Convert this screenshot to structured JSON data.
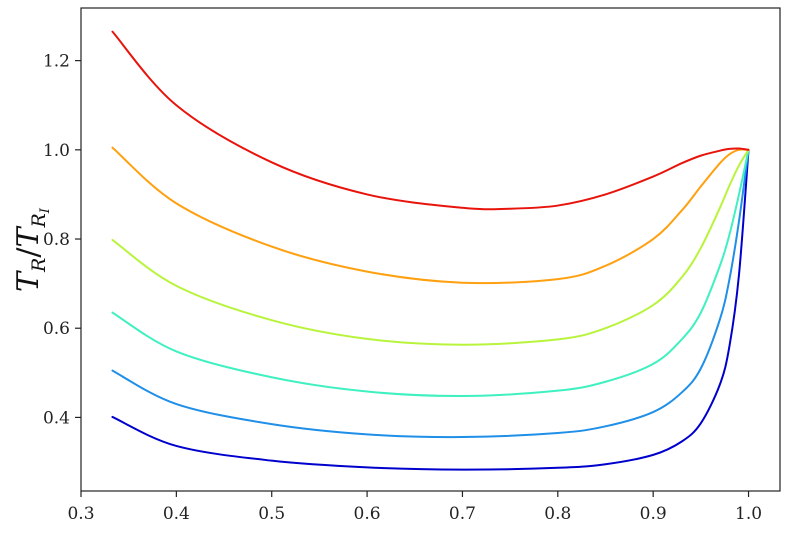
{
  "chart_data": {
    "type": "line",
    "title": "",
    "xlabel": "",
    "ylabel": {
      "main": "T",
      "sub": "R",
      "sep": "/",
      "main2": "T",
      "sub2": "R",
      "subsub2": "I"
    },
    "xlim": [
      0.3,
      1.033
    ],
    "ylim": [
      0.235,
      1.318
    ],
    "xticks": [
      0.3,
      0.4,
      0.5,
      0.6,
      0.7,
      0.8,
      0.9,
      1.0
    ],
    "xtick_labels": [
      "0.3",
      "0.4",
      "0.5",
      "0.6",
      "0.7",
      "0.8",
      "0.9",
      "1.0"
    ],
    "yticks": [
      0.4,
      0.6,
      0.8,
      1.0,
      1.2
    ],
    "ytick_labels": [
      "0.4",
      "0.6",
      "0.8",
      "1.0",
      "1.2"
    ],
    "grid": false,
    "legend": "none",
    "series": [
      {
        "color": "#0000cc",
        "x": [
          0.333,
          0.4,
          0.5,
          0.6,
          0.7,
          0.8,
          0.85,
          0.9,
          0.93,
          0.95,
          0.97,
          0.98,
          0.99,
          1.0
        ],
        "y": [
          0.401,
          0.336,
          0.303,
          0.288,
          0.283,
          0.287,
          0.295,
          0.316,
          0.346,
          0.387,
          0.474,
          0.56,
          0.72,
          1.0
        ]
      },
      {
        "color": "#1f8fe8",
        "x": [
          0.333,
          0.4,
          0.5,
          0.6,
          0.7,
          0.8,
          0.85,
          0.9,
          0.93,
          0.95,
          0.97,
          0.98,
          0.99,
          1.0
        ],
        "y": [
          0.505,
          0.43,
          0.385,
          0.362,
          0.356,
          0.365,
          0.38,
          0.412,
          0.456,
          0.51,
          0.62,
          0.71,
          0.84,
          1.0
        ]
      },
      {
        "color": "#3ff0c0",
        "x": [
          0.333,
          0.4,
          0.5,
          0.6,
          0.7,
          0.8,
          0.85,
          0.9,
          0.93,
          0.95,
          0.97,
          0.98,
          0.99,
          1.0
        ],
        "y": [
          0.635,
          0.548,
          0.49,
          0.458,
          0.448,
          0.46,
          0.48,
          0.52,
          0.575,
          0.635,
          0.74,
          0.81,
          0.9,
          1.0
        ]
      },
      {
        "color": "#b8f43c",
        "x": [
          0.333,
          0.4,
          0.5,
          0.6,
          0.7,
          0.8,
          0.85,
          0.9,
          0.93,
          0.95,
          0.97,
          0.98,
          0.99,
          1.0
        ],
        "y": [
          0.798,
          0.695,
          0.618,
          0.576,
          0.563,
          0.575,
          0.6,
          0.652,
          0.714,
          0.78,
          0.87,
          0.92,
          0.965,
          1.0
        ]
      },
      {
        "color": "#ffa010",
        "x": [
          0.333,
          0.4,
          0.5,
          0.6,
          0.7,
          0.8,
          0.85,
          0.9,
          0.93,
          0.95,
          0.97,
          0.98,
          0.99,
          1.0
        ],
        "y": [
          1.005,
          0.88,
          0.783,
          0.727,
          0.702,
          0.71,
          0.74,
          0.8,
          0.864,
          0.918,
          0.97,
          0.99,
          1.0,
          1.0
        ]
      },
      {
        "color": "#e8140c",
        "x": [
          0.333,
          0.4,
          0.5,
          0.6,
          0.7,
          0.75,
          0.8,
          0.85,
          0.9,
          0.93,
          0.95,
          0.97,
          0.98,
          0.99,
          1.0
        ],
        "y": [
          1.265,
          1.1,
          0.972,
          0.9,
          0.87,
          0.868,
          0.875,
          0.9,
          0.94,
          0.97,
          0.987,
          0.998,
          1.002,
          1.003,
          1.0
        ]
      }
    ]
  }
}
